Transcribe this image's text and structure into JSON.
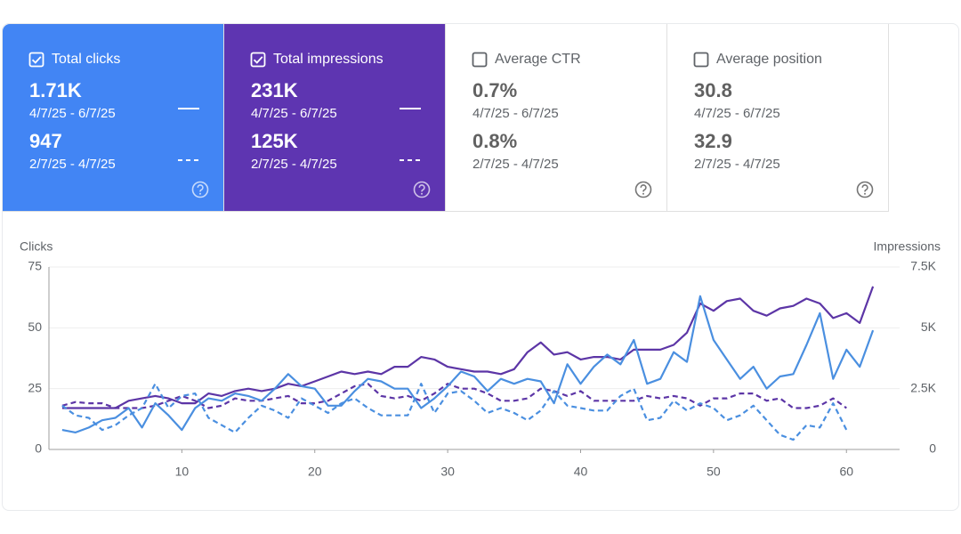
{
  "cards": [
    {
      "label": "Total clicks",
      "checked": true,
      "bg": "#4285f4",
      "fg": "#ffffff",
      "current": {
        "value": "1.71K",
        "dates": "4/7/25 - 6/7/25"
      },
      "previous": {
        "value": "947",
        "dates": "2/7/25 - 4/7/25"
      }
    },
    {
      "label": "Total impressions",
      "checked": true,
      "bg": "#5e35b1",
      "fg": "#ffffff",
      "current": {
        "value": "231K",
        "dates": "4/7/25 - 6/7/25"
      },
      "previous": {
        "value": "125K",
        "dates": "2/7/25 - 4/7/25"
      }
    },
    {
      "label": "Average CTR",
      "checked": false,
      "bg": "#ffffff",
      "fg": "#5f6368",
      "current": {
        "value": "0.7%",
        "dates": "4/7/25 - 6/7/25"
      },
      "previous": {
        "value": "0.8%",
        "dates": "2/7/25 - 4/7/25"
      }
    },
    {
      "label": "Average position",
      "checked": false,
      "bg": "#ffffff",
      "fg": "#5f6368",
      "current": {
        "value": "30.8",
        "dates": "4/7/25 - 6/7/25"
      },
      "previous": {
        "value": "32.9",
        "dates": "2/7/25 - 4/7/25"
      }
    }
  ],
  "chart_data": {
    "type": "line",
    "ylabel": "Clicks",
    "y2label": "Impressions",
    "x": [
      1,
      2,
      3,
      4,
      5,
      6,
      7,
      8,
      9,
      10,
      11,
      12,
      13,
      14,
      15,
      16,
      17,
      18,
      19,
      20,
      21,
      22,
      23,
      24,
      25,
      26,
      27,
      28,
      29,
      30,
      31,
      32,
      33,
      34,
      35,
      36,
      37,
      38,
      39,
      40,
      41,
      42,
      43,
      44,
      45,
      46,
      47,
      48,
      49,
      50,
      51,
      52,
      53,
      54,
      55,
      56,
      57,
      58,
      59,
      60,
      61,
      62
    ],
    "xlim": [
      0,
      64
    ],
    "xticks": [
      10,
      20,
      30,
      40,
      50,
      60
    ],
    "ylim": [
      0,
      75
    ],
    "yticks": [
      0,
      25,
      50,
      75
    ],
    "y2lim": [
      0,
      7500
    ],
    "y2ticks": [
      0,
      {
        "value": 2500,
        "label": "2.5K"
      },
      {
        "value": 5000,
        "label": "5K"
      },
      {
        "value": 7500,
        "label": "7.5K"
      }
    ],
    "grid": true,
    "series": [
      {
        "color": "#5c35a6",
        "axis": "y2",
        "dash": false,
        "values": [
          1700,
          1700,
          1700,
          1700,
          1700,
          2000,
          2100,
          2200,
          2100,
          1900,
          1900,
          2300,
          2200,
          2400,
          2500,
          2400,
          2500,
          2700,
          2600,
          2800,
          3000,
          3200,
          3100,
          3200,
          3100,
          3400,
          3400,
          3800,
          3700,
          3400,
          3300,
          3200,
          3200,
          3100,
          3300,
          4000,
          4400,
          3900,
          4000,
          3700,
          3800,
          3800,
          3700,
          4100,
          4100,
          4100,
          4300,
          4800,
          6000,
          5700,
          6100,
          6200,
          5700,
          5500,
          5800,
          5900,
          6200,
          6000,
          5400,
          5600,
          5200,
          6700
        ]
      },
      {
        "color": "#5c35a6",
        "axis": "y2",
        "dash": true,
        "values": [
          1800,
          1950,
          1900,
          1900,
          1700,
          1700,
          1700,
          1800,
          2000,
          2200,
          2000,
          1700,
          1800,
          2100,
          2000,
          2000,
          2100,
          2200,
          1900,
          1900,
          2000,
          2300,
          2600,
          2700,
          2200,
          2100,
          2200,
          2000,
          2300,
          2700,
          2500,
          2500,
          2300,
          2000,
          2000,
          2100,
          2500,
          2400,
          2200,
          2400,
          2000,
          2000,
          2000,
          2000,
          2200,
          2100,
          2200,
          2100,
          1800,
          2100,
          2100,
          2300,
          2300,
          2000,
          2100,
          1700,
          1700,
          1800,
          2100,
          1700,
          null,
          null
        ]
      },
      {
        "color": "#4a8fe0",
        "axis": "y",
        "dash": true,
        "values": [
          18,
          14,
          13,
          8,
          10,
          14,
          17,
          27,
          17,
          22,
          23,
          13,
          10,
          7,
          13,
          18,
          16,
          13,
          21,
          18,
          15,
          19,
          21,
          17,
          14,
          14,
          14,
          27,
          15,
          23,
          24,
          20,
          15,
          17,
          15,
          12,
          16,
          24,
          18,
          17,
          16,
          16,
          22,
          25,
          12,
          13,
          20,
          16,
          19,
          17,
          12,
          14,
          18,
          12,
          6,
          4,
          10,
          9,
          19,
          8,
          null,
          null
        ]
      },
      {
        "color": "#4a8fe0",
        "axis": "y",
        "dash": false,
        "values": [
          8,
          7,
          9,
          12,
          13,
          17,
          9,
          19,
          14,
          8,
          17,
          21,
          20,
          23,
          22,
          20,
          25,
          31,
          26,
          25,
          18,
          18,
          24,
          29,
          28,
          25,
          25,
          17,
          21,
          26,
          32,
          30,
          24,
          29,
          27,
          29,
          28,
          19,
          35,
          27,
          34,
          39,
          35,
          45,
          27,
          29,
          40,
          36,
          63,
          45,
          37,
          29,
          34,
          25,
          30,
          31,
          43,
          56,
          29,
          41,
          34,
          49
        ]
      }
    ]
  }
}
